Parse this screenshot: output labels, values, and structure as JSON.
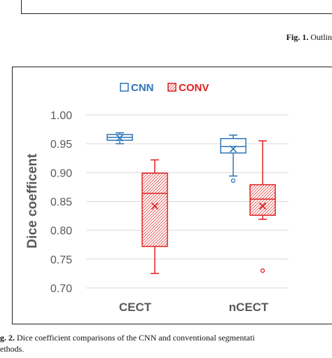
{
  "fig1": {
    "label": "Fig. 1.",
    "text": "Outlin"
  },
  "caption": {
    "label": "g. 2.",
    "line1": "Dice coefficient comparisons of the CNN and conventional segmentati",
    "line2": "ethods."
  },
  "colors": {
    "cnn": "#2e75b6",
    "conv": "#e02020",
    "axis_text": "#595959",
    "grid": "#d9d9d9"
  },
  "chart_data": {
    "type": "box",
    "xlabel": "",
    "ylabel": "Dice coefficent",
    "ylim": [
      0.7,
      1.0
    ],
    "yticks": [
      "1.00",
      "0.95",
      "0.90",
      "0.85",
      "0.80",
      "0.75",
      "0.70"
    ],
    "categories": [
      "CECT",
      "nCECT"
    ],
    "legend": {
      "position": "top-center",
      "entries": [
        "CNN",
        "CONV"
      ]
    },
    "series": [
      {
        "name": "CNN",
        "boxes": [
          {
            "min": 0.95,
            "q1": 0.956,
            "median": 0.961,
            "q3": 0.966,
            "max": 0.969,
            "mean": 0.96,
            "outliers": []
          },
          {
            "min": 0.894,
            "q1": 0.934,
            "median": 0.945,
            "q3": 0.959,
            "max": 0.965,
            "mean": 0.941,
            "outliers": [
              0.886
            ]
          }
        ]
      },
      {
        "name": "CONV",
        "boxes": [
          {
            "min": 0.725,
            "q1": 0.772,
            "median": 0.864,
            "q3": 0.899,
            "max": 0.922,
            "mean": 0.842,
            "outliers": []
          },
          {
            "min": 0.819,
            "q1": 0.826,
            "median": 0.854,
            "q3": 0.879,
            "max": 0.955,
            "mean": 0.842,
            "outliers": [
              0.73
            ]
          }
        ]
      }
    ]
  }
}
